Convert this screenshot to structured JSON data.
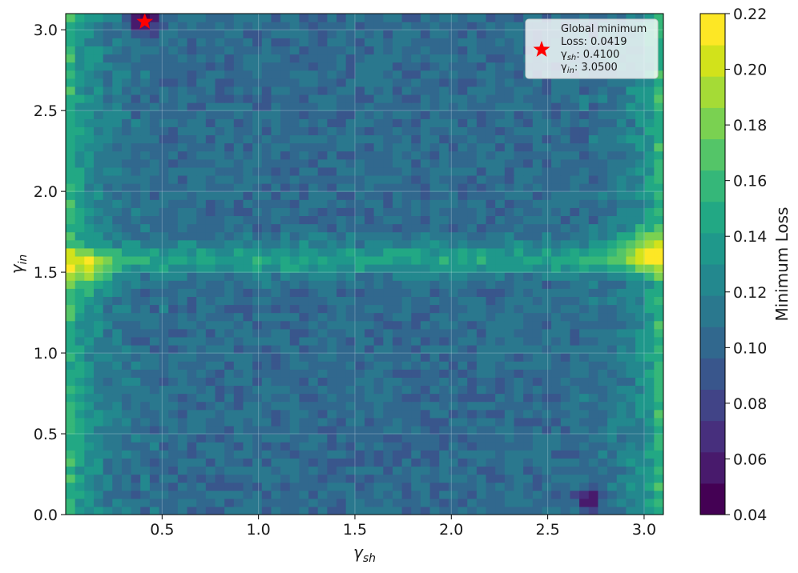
{
  "chart_data": {
    "type": "heatmap",
    "subtype": "filled-contour",
    "title": "",
    "xlabel": {
      "base": "γ",
      "sub": "sh"
    },
    "ylabel": {
      "base": "γ",
      "sub": "in"
    },
    "xlim": [
      0.0,
      3.1
    ],
    "ylim": [
      0.0,
      3.1
    ],
    "x_ticks": [
      0.5,
      1.0,
      1.5,
      2.0,
      2.5,
      3.0
    ],
    "x_tick_labels": [
      "0.5",
      "1.0",
      "1.5",
      "2.0",
      "2.5",
      "3.0"
    ],
    "y_ticks": [
      0.0,
      0.5,
      1.0,
      1.5,
      2.0,
      2.5,
      3.0
    ],
    "y_tick_labels": [
      "0.0",
      "0.5",
      "1.0",
      "1.5",
      "2.0",
      "2.5",
      "3.0"
    ],
    "grid": true,
    "colormap": "viridis",
    "colorbar": {
      "label": "Minimum Loss",
      "min": 0.04,
      "max": 0.22,
      "levels": [
        0.04,
        0.05,
        0.06,
        0.07,
        0.08,
        0.09,
        0.1,
        0.11,
        0.12,
        0.13,
        0.14,
        0.15,
        0.16,
        0.17,
        0.18,
        0.19,
        0.2,
        0.21,
        0.22
      ],
      "ticks": [
        0.04,
        0.06,
        0.08,
        0.1,
        0.12,
        0.14,
        0.16,
        0.18,
        0.2,
        0.22
      ],
      "tick_labels": [
        "0.04",
        "0.06",
        "0.08",
        "0.10",
        "0.12",
        "0.14",
        "0.16",
        "0.18",
        "0.20",
        "0.22"
      ],
      "colors": [
        "#440154",
        "#481a6c",
        "#472f7d",
        "#414487",
        "#39568c",
        "#31688e",
        "#2a788e",
        "#23888e",
        "#1f988b",
        "#22a884",
        "#35b779",
        "#54c568",
        "#7ad151",
        "#a5db36",
        "#d2e21b",
        "#fde725"
      ]
    },
    "surface": {
      "description_features": [
        {
          "kind": "background",
          "value": 0.105
        },
        {
          "kind": "left-edge-band",
          "x": 0.0,
          "value": 0.165
        },
        {
          "kind": "right-edge-band",
          "x": 3.1,
          "value": 0.165
        },
        {
          "kind": "horizontal-ridge",
          "y": 1.58,
          "value": 0.145
        },
        {
          "kind": "hotspot",
          "x": 0.12,
          "y": 1.5,
          "value": 0.2
        },
        {
          "kind": "hotspot",
          "x": 3.0,
          "y": 1.65,
          "value": 0.19
        },
        {
          "kind": "minimum-pit",
          "x": 0.41,
          "y": 3.05,
          "value": 0.0419
        },
        {
          "kind": "minimum-pit",
          "x": 2.72,
          "y": 0.1,
          "value": 0.05
        }
      ]
    },
    "global_minimum": {
      "x": 0.41,
      "y": 3.05,
      "loss": 0.0419,
      "marker": "star",
      "marker_color": "#ff0000"
    },
    "legend": {
      "placement": "top-right",
      "title": "Global minimum",
      "loss_text": "Loss: 0.0419",
      "gsh_base": "γ",
      "gsh_sub": "sh",
      "gsh_value": ": 0.4100",
      "gin_base": "γ",
      "gin_sub": "in",
      "gin_value": ": 3.0500"
    }
  }
}
